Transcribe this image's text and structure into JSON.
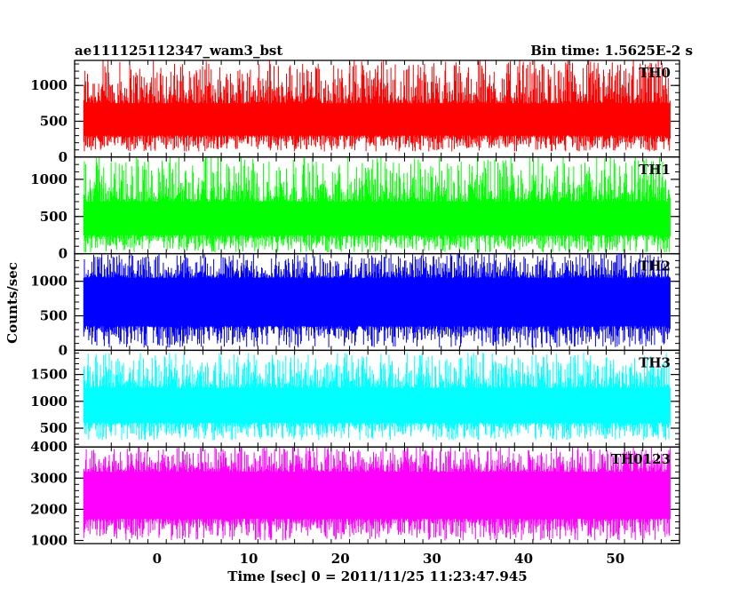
{
  "chart_data": {
    "type": "line",
    "title": "ae111125112347_wam3_bst",
    "subtitle": "Bin time: 1.5625E-2 s",
    "xlabel": "Time [sec] 0 = 2011/11/25 11:23:47.945",
    "ylabel": "Counts/sec",
    "xlim": [
      -9,
      57
    ],
    "x_ticks": [
      0,
      10,
      20,
      30,
      40,
      50
    ],
    "data_x_range": [
      -8.0,
      56.0
    ],
    "shared_x_axis": true,
    "panels": [
      {
        "name": "TH0",
        "color": "#ff0000",
        "ylim": [
          0,
          1350
        ],
        "y_ticks": [
          0,
          500,
          1000
        ],
        "level_min": 80,
        "level_max": 1350,
        "band_low": 300,
        "band_high": 750
      },
      {
        "name": "TH1",
        "color": "#00ff00",
        "ylim": [
          0,
          1300
        ],
        "y_ticks": [
          0,
          500,
          1000
        ],
        "level_min": 20,
        "level_max": 1300,
        "band_low": 250,
        "band_high": 700
      },
      {
        "name": "TH2",
        "color": "#0000ff",
        "ylim": [
          0,
          1400
        ],
        "y_ticks": [
          0,
          500,
          1000
        ],
        "level_min": 40,
        "level_max": 1400,
        "band_low": 350,
        "band_high": 1050
      },
      {
        "name": "TH3",
        "color": "#00ffff",
        "ylim": [
          150,
          1950
        ],
        "y_ticks": [
          500,
          1000,
          1500
        ],
        "level_min": 280,
        "level_max": 1900,
        "band_low": 600,
        "band_high": 1250
      },
      {
        "name": "TH0123",
        "color": "#ff00ff",
        "ylim": [
          900,
          4000
        ],
        "y_ticks": [
          1000,
          2000,
          3000,
          4000
        ],
        "level_min": 1000,
        "level_max": 4000,
        "band_low": 1700,
        "band_high": 3200
      }
    ]
  }
}
